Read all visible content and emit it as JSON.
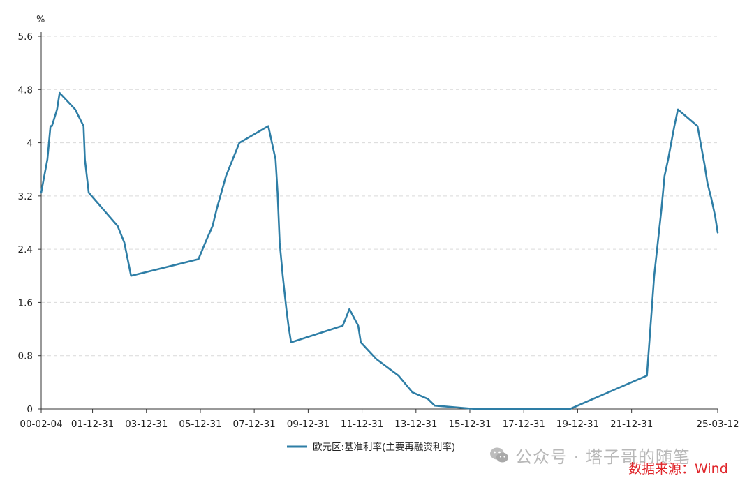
{
  "chart_data": {
    "type": "line",
    "title": "",
    "xlabel": "",
    "ylabel": "%",
    "ylim": [
      0,
      5.6
    ],
    "yticks": [
      "0",
      "0.8",
      "1.6",
      "2.4",
      "3.2",
      "4",
      "4.8",
      "5.6"
    ],
    "xticks": [
      "00-02-04",
      "01-12-31",
      "03-12-31",
      "05-12-31",
      "07-12-31",
      "09-12-31",
      "11-12-31",
      "13-12-31",
      "15-12-31",
      "17-12-31",
      "19-12-31",
      "21-12-31",
      "25-03-12"
    ],
    "xlim": [
      "2000-02-04",
      "2025-03-12"
    ],
    "grid": true,
    "legend_position": "bottom-center",
    "series": [
      {
        "name": "欧元区:基准利率(主要再融资利率)",
        "color": "#2e7ea6",
        "x": [
          "2000-02-04",
          "2000-03-17",
          "2000-04-28",
          "2000-06-09",
          "2000-06-28",
          "2000-09-06",
          "2000-10-11",
          "2001-05-11",
          "2001-08-31",
          "2001-09-18",
          "2001-11-09",
          "2002-12-06",
          "2003-03-07",
          "2003-06-06",
          "2005-12-06",
          "2006-03-08",
          "2006-06-15",
          "2006-08-09",
          "2006-10-11",
          "2006-12-13",
          "2007-03-14",
          "2007-06-13",
          "2008-07-09",
          "2008-10-15",
          "2008-11-12",
          "2008-12-10",
          "2009-01-21",
          "2009-03-11",
          "2009-04-08",
          "2009-05-13",
          "2011-04-13",
          "2011-07-13",
          "2011-11-09",
          "2011-12-14",
          "2012-07-11",
          "2013-05-08",
          "2013-11-13",
          "2014-06-11",
          "2014-09-10",
          "2016-03-16",
          "2019-09-18",
          "2022-07-27",
          "2022-09-14",
          "2022-11-02",
          "2022-12-21",
          "2023-02-08",
          "2023-03-22",
          "2023-05-10",
          "2023-06-21",
          "2023-08-02",
          "2023-09-20",
          "2024-06-12",
          "2024-09-18",
          "2024-10-23",
          "2024-12-18",
          "2025-02-05",
          "2025-03-12"
        ],
        "values": [
          3.25,
          3.5,
          3.75,
          4.25,
          4.25,
          4.5,
          4.75,
          4.5,
          4.25,
          3.75,
          3.25,
          2.75,
          2.5,
          2.0,
          2.25,
          2.5,
          2.75,
          3.0,
          3.25,
          3.5,
          3.75,
          4.0,
          4.25,
          3.75,
          3.25,
          2.5,
          2.0,
          1.5,
          1.25,
          1.0,
          1.25,
          1.5,
          1.25,
          1.0,
          0.75,
          0.5,
          0.25,
          0.15,
          0.05,
          0.0,
          0.0,
          0.5,
          1.25,
          2.0,
          2.5,
          3.0,
          3.5,
          3.75,
          4.0,
          4.25,
          4.5,
          4.25,
          3.65,
          3.4,
          3.15,
          2.9,
          2.65
        ]
      }
    ]
  },
  "watermark": {
    "text": "公众号 · 塔子哥的随笔",
    "icon": "wechat-icon"
  },
  "source_note": "数据来源：Wind"
}
